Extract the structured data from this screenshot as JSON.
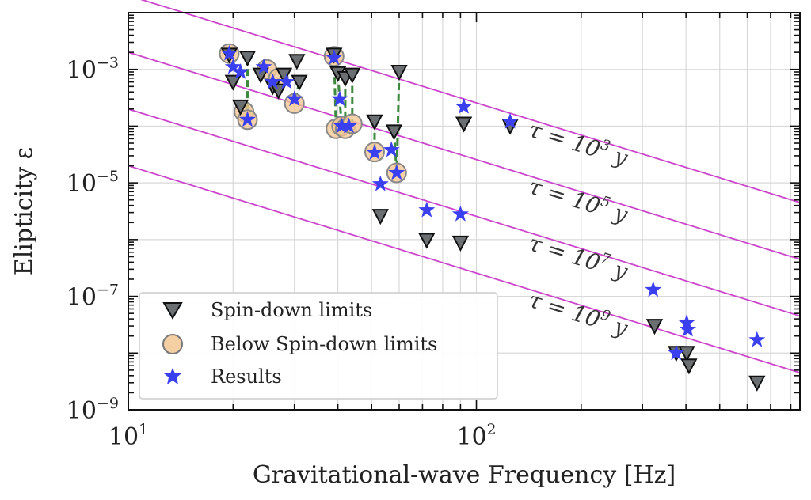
{
  "chart_data": {
    "type": "scatter",
    "xlabel": "Gravitational-wave Frequency [Hz]",
    "ylabel": "Elipticity ε",
    "x_scale": "log",
    "y_scale": "log",
    "xlim": [
      10,
      850
    ],
    "ylim": [
      1e-09,
      0.01
    ],
    "grid": true,
    "legend_position": "lower-left",
    "x_ticks": [
      {
        "base": "10",
        "exp": "1",
        "value": 10
      },
      {
        "base": "10",
        "exp": "2",
        "value": 100
      }
    ],
    "y_ticks": [
      {
        "base": "10",
        "exp": "−3",
        "value": 0.001
      },
      {
        "base": "10",
        "exp": "−5",
        "value": 1e-05
      },
      {
        "base": "10",
        "exp": "−7",
        "value": 1e-07
      },
      {
        "base": "10",
        "exp": "−9",
        "value": 1e-09
      }
    ],
    "tau_lines": [
      {
        "label_prefix": "τ = 10",
        "exp": "3",
        "suffix": " y",
        "points": [
          [
            10,
            0.02
          ],
          [
            850,
            4.5e-06
          ]
        ]
      },
      {
        "label_prefix": "τ = 10",
        "exp": "5",
        "suffix": " y",
        "points": [
          [
            10,
            0.002
          ],
          [
            850,
            4.5e-07
          ]
        ]
      },
      {
        "label_prefix": "τ = 10",
        "exp": "7",
        "suffix": " y",
        "points": [
          [
            10,
            0.0002
          ],
          [
            850,
            4.5e-08
          ]
        ]
      },
      {
        "label_prefix": "τ = 10",
        "exp": "9",
        "suffix": " y",
        "points": [
          [
            10,
            2e-05
          ],
          [
            850,
            4.5e-09
          ]
        ]
      }
    ],
    "series": [
      {
        "name": "Spin-down limits",
        "color": "#6b6f72",
        "marker": "triangle-down",
        "points": [
          [
            19.5,
            0.0018
          ],
          [
            20.0,
            0.0006
          ],
          [
            21.0,
            0.00022
          ],
          [
            22.0,
            0.0016
          ],
          [
            24.0,
            0.0008
          ],
          [
            26.0,
            0.0005
          ],
          [
            27.0,
            0.00042
          ],
          [
            28.0,
            0.0008
          ],
          [
            30.5,
            0.0014
          ],
          [
            31.0,
            0.0006
          ],
          [
            39.0,
            0.0018
          ],
          [
            40.0,
            0.00085
          ],
          [
            42.0,
            0.0007
          ],
          [
            44.0,
            0.0008
          ],
          [
            51.0,
            0.00012
          ],
          [
            53.0,
            2.6e-06
          ],
          [
            58.0,
            8e-05
          ],
          [
            60.0,
            0.0009
          ],
          [
            72.0,
            9.8e-07
          ],
          [
            90.0,
            8.8e-07
          ],
          [
            92.0,
            0.00011
          ],
          [
            125.0,
            0.0001
          ],
          [
            325.0,
            3e-08
          ],
          [
            375.0,
            1e-08
          ],
          [
            402.0,
            1e-08
          ],
          [
            408.0,
            6e-09
          ],
          [
            640.0,
            3e-09
          ]
        ]
      },
      {
        "name": "Below Spin-down limits",
        "color": "#f2c794",
        "marker": "circle",
        "points": [
          [
            19.5,
            0.0019
          ],
          [
            21.5,
            0.00018
          ],
          [
            22.0,
            0.00013
          ],
          [
            25.0,
            0.001
          ],
          [
            27.0,
            0.0007
          ],
          [
            30.0,
            0.00025
          ],
          [
            39.0,
            0.0017
          ],
          [
            39.5,
            9e-05
          ],
          [
            41.0,
            0.0001
          ],
          [
            42.0,
            9e-05
          ],
          [
            44.0,
            0.00011
          ],
          [
            51.0,
            3.5e-05
          ],
          [
            59.0,
            1.5e-05
          ]
        ]
      },
      {
        "name": "Results",
        "color": "#3a3ff0",
        "marker": "star",
        "points": [
          [
            19.5,
            0.0019
          ],
          [
            20.0,
            0.0011
          ],
          [
            21.0,
            0.0009
          ],
          [
            22.0,
            0.00013
          ],
          [
            24.5,
            0.0011
          ],
          [
            26.0,
            0.0006
          ],
          [
            28.5,
            0.0006
          ],
          [
            30.0,
            0.0003
          ],
          [
            39.0,
            0.0016
          ],
          [
            40.5,
            0.0003
          ],
          [
            41.0,
            0.0001
          ],
          [
            43.0,
            0.0001
          ],
          [
            51.0,
            3.4e-05
          ],
          [
            53.0,
            9.5e-06
          ],
          [
            57.0,
            3.8e-05
          ],
          [
            59.0,
            1.5e-05
          ],
          [
            72.0,
            3.3e-06
          ],
          [
            90.0,
            2.8e-06
          ],
          [
            92.0,
            0.00022
          ],
          [
            125.0,
            0.00012
          ],
          [
            322.0,
            1.3e-07
          ],
          [
            375.0,
            1e-08
          ],
          [
            402.0,
            3.4e-08
          ],
          [
            405.0,
            2.6e-08
          ],
          [
            640.0,
            1.7e-08
          ]
        ]
      }
    ],
    "connectors": [
      [
        [
          19.5,
          0.0018
        ],
        [
          19.5,
          0.0019
        ]
      ],
      [
        [
          21.0,
          0.00022
        ],
        [
          21.5,
          0.00018
        ]
      ],
      [
        [
          22.0,
          0.0016
        ],
        [
          22.0,
          0.00013
        ]
      ],
      [
        [
          24.0,
          0.0008
        ],
        [
          25.0,
          0.001
        ]
      ],
      [
        [
          27.0,
          0.00042
        ],
        [
          27.0,
          0.0007
        ]
      ],
      [
        [
          31.0,
          0.0006
        ],
        [
          30.0,
          0.00025
        ]
      ],
      [
        [
          39.0,
          0.0018
        ],
        [
          39.5,
          9e-05
        ]
      ],
      [
        [
          40.0,
          0.00085
        ],
        [
          41.0,
          0.0001
        ]
      ],
      [
        [
          42.0,
          0.0007
        ],
        [
          42.0,
          9e-05
        ]
      ],
      [
        [
          44.0,
          0.0008
        ],
        [
          44.0,
          0.00011
        ]
      ],
      [
        [
          51.0,
          0.00012
        ],
        [
          51.0,
          3.5e-05
        ]
      ],
      [
        [
          58.0,
          8e-05
        ],
        [
          59.0,
          1.5e-05
        ]
      ],
      [
        [
          60.0,
          0.0009
        ],
        [
          59.0,
          1.5e-05
        ]
      ]
    ],
    "connector_color": "#3d8a3d",
    "tau_line_color": "#cc44cc",
    "legend": [
      {
        "label": "Spin-down limits"
      },
      {
        "label": "Below Spin-down limits"
      },
      {
        "label": "Results"
      }
    ]
  }
}
